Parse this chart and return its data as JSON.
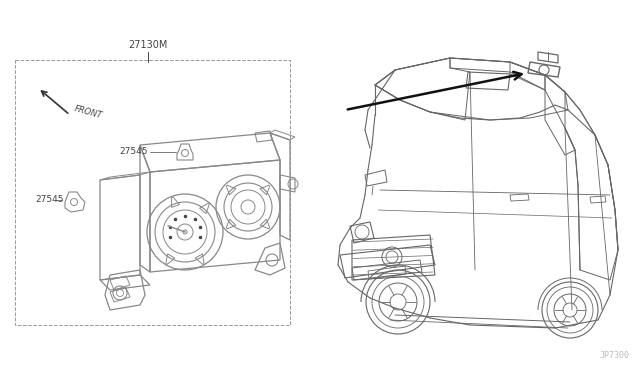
{
  "bg_color": "#ffffff",
  "lc": "#888888",
  "dc": "#444444",
  "bc": "#333333",
  "label_27130M": "27130M",
  "label_27545": "27545",
  "label_front": "FRONT",
  "watermark": "JP7300",
  "fig_w": 6.4,
  "fig_h": 3.72,
  "dpi": 100
}
